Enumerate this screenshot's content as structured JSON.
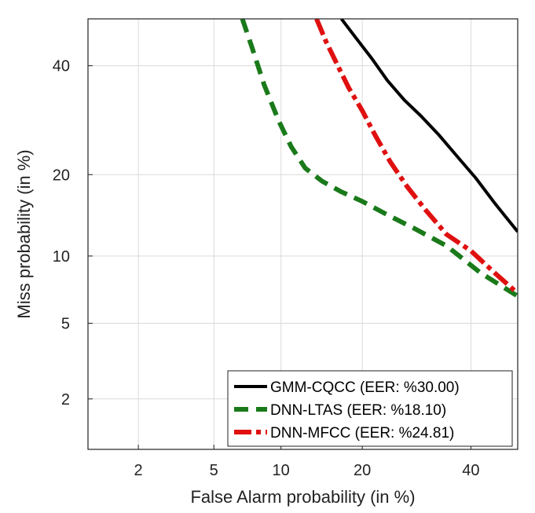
{
  "chart_data": {
    "type": "line",
    "title": "",
    "xlabel": "False Alarm probability (in %)",
    "ylabel": "Miss probability (in %)",
    "xscale": "probit",
    "yscale": "probit",
    "xlim": [
      1,
      50
    ],
    "ylim": [
      1,
      50
    ],
    "xticks": [
      2,
      5,
      10,
      20,
      40
    ],
    "yticks": [
      2,
      5,
      10,
      20,
      40
    ],
    "xticklabels": [
      "2",
      "5",
      "10",
      "20",
      "40"
    ],
    "yticklabels": [
      "2",
      "5",
      "10",
      "20",
      "40"
    ],
    "grid": true,
    "legend_position": "bottom-right",
    "series": [
      {
        "name": "GMM-CQCC (EER: %30.00)",
        "color": "#000000",
        "style": "solid",
        "x": [
          17.0,
          19.0,
          21.5,
          24.0,
          27.0,
          30.0,
          33.5,
          37.0,
          41.0,
          45.0,
          50.0
        ],
        "y": [
          50.0,
          46.0,
          41.5,
          37.0,
          33.0,
          30.0,
          26.5,
          23.0,
          19.5,
          16.0,
          12.5
        ]
      },
      {
        "name": "DNN-LTAS (EER: %18.10)",
        "color": "#1a7a1a",
        "style": "dashed",
        "x": [
          6.8,
          7.5,
          8.5,
          9.8,
          11.0,
          12.5,
          14.5,
          17.0,
          20.0,
          24.0,
          29.0,
          35.0,
          42.0,
          50.0
        ],
        "y": [
          50.0,
          44.0,
          36.0,
          29.0,
          24.5,
          21.0,
          19.0,
          17.5,
          16.2,
          14.5,
          12.8,
          11.0,
          8.5,
          6.7
        ]
      },
      {
        "name": "DNN-MFCC (EER: %24.81)",
        "color": "#e01010",
        "style": "dash-dot",
        "x": [
          13.8,
          15.0,
          16.5,
          18.0,
          20.0,
          22.0,
          24.5,
          27.5,
          31.0,
          35.0,
          40.0,
          45.0,
          50.0
        ],
        "y": [
          50.0,
          45.0,
          40.0,
          35.5,
          31.0,
          26.5,
          22.0,
          18.2,
          15.0,
          12.2,
          10.5,
          8.5,
          6.9
        ]
      }
    ]
  }
}
